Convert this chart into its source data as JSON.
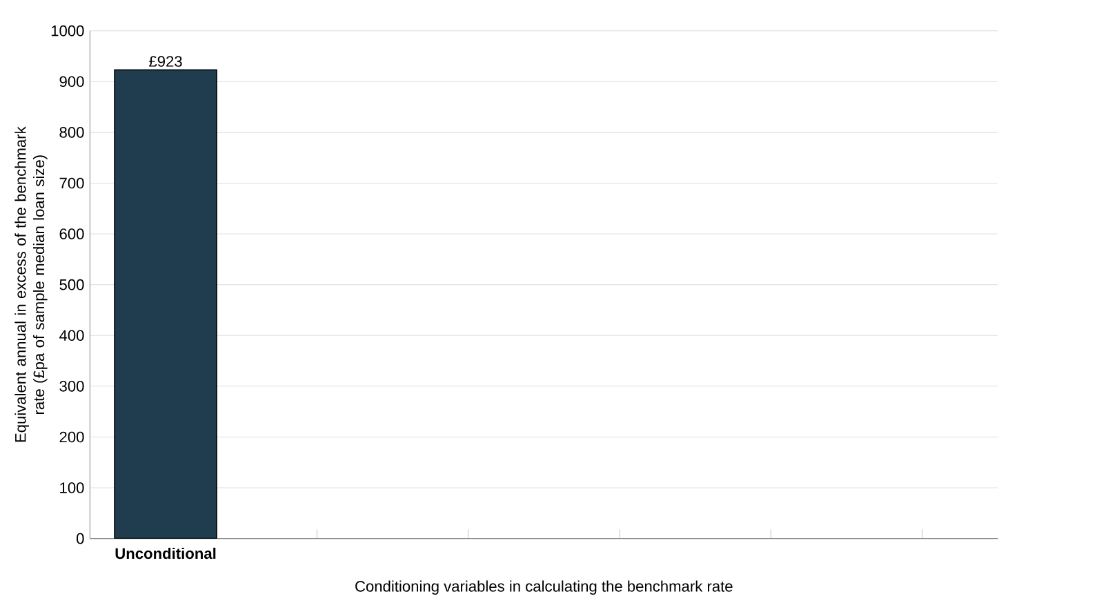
{
  "chart_data": {
    "type": "bar",
    "xlabel": "Conditioning variables in calculating the benchmark rate",
    "ylabel": "Equivalent annual in excess of the benchmark rate (£pa of sample median loan size)",
    "categories": [
      "Unconditional",
      null,
      null,
      null,
      null,
      null
    ],
    "values": [
      923,
      null,
      null,
      null,
      null,
      null
    ],
    "value_labels": [
      "£923",
      null,
      null,
      null,
      null,
      null
    ],
    "color": "#1f3d4f",
    "ylim": [
      0,
      1000
    ],
    "yticks": [
      0,
      100,
      200,
      300,
      400,
      500,
      600,
      700,
      800,
      900,
      1000
    ],
    "grid": "y"
  }
}
